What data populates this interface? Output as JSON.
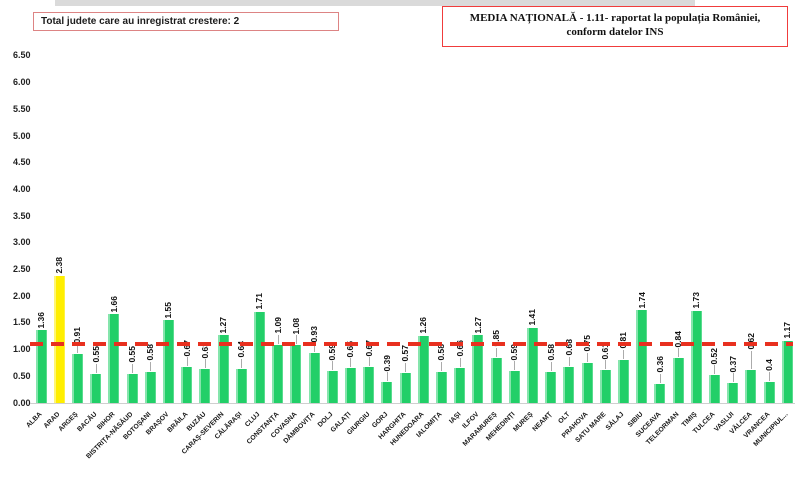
{
  "annotations": {
    "total_box": "Total judete care au inregistrat crestere: 2",
    "media_box_line1": "MEDIA NAȚIONALĂ - 1.11-  raportat la populația României,",
    "media_box_line2": "conform datelor INS"
  },
  "chart_data": {
    "type": "bar",
    "title": "",
    "xlabel": "",
    "ylabel": "",
    "legend": "none",
    "grid": false,
    "ylim": [
      0,
      6.5
    ],
    "ytick_step": 0.5,
    "yticks": [
      "6.50",
      "6.00",
      "5.50",
      "5.00",
      "4.50",
      "4.00",
      "3.50",
      "3.00",
      "2.50",
      "2.00",
      "1.50",
      "1.00",
      "0.50",
      "0.00"
    ],
    "categories": [
      "ALBA",
      "ARAD",
      "ARGEȘ",
      "BACĂU",
      "BIHOR",
      "BISTRIȚA-NĂSĂUD",
      "BOTOȘANI",
      "BRAȘOV",
      "BRĂILA",
      "BUZĂU",
      "CARAȘ-SEVERIN",
      "CĂLĂRAȘI",
      "CLUJ",
      "CONSTANȚA",
      "COVASNA",
      "DÂMBOVIȚA",
      "DOLJ",
      "GALAȚI",
      "GIURGIU",
      "GORJ",
      "HARGHITA",
      "HUNEDOARA",
      "IALOMIȚA",
      "IAȘI",
      "ILFOV",
      "MARAMUREȘ",
      "MEHEDINȚI",
      "MUREȘ",
      "NEAMȚ",
      "OLT",
      "PRAHOVA",
      "SATU MARE",
      "SĂLAJ",
      "SIBIU",
      "SUCEAVA",
      "TELEORMAN",
      "TIMIȘ",
      "TULCEA",
      "VASLUI",
      "VÂLCEA",
      "VRANCEA",
      "MUNICIPIUL..."
    ],
    "values": [
      1.36,
      2.38,
      0.91,
      0.55,
      1.66,
      0.55,
      0.58,
      1.55,
      0.67,
      0.63,
      1.27,
      0.64,
      1.71,
      1.09,
      1.08,
      0.93,
      0.59,
      0.65,
      0.67,
      0.39,
      0.57,
      1.26,
      0.58,
      0.66,
      1.27,
      0.85,
      0.59,
      1.41,
      0.58,
      0.68,
      0.75,
      0.61,
      0.81,
      1.74,
      0.36,
      0.84,
      1.73,
      0.52,
      0.37,
      0.62,
      0.4,
      1.17
    ],
    "value_labels": [
      "1.36",
      "2.38",
      "0.91",
      "0.55",
      "1.66",
      "0.55",
      "0.58",
      "1.55",
      "0.67",
      "0.63",
      "1.27",
      "0.64",
      "1.71",
      "1.09",
      "1.08",
      "0.93",
      "0.59",
      "0.65",
      "0.67",
      "0.39",
      "0.57",
      "1.26",
      "0.58",
      "0.66",
      "1.27",
      "0.85",
      "0.59",
      "1.41",
      "0.58",
      "0.68",
      "0.75",
      "0.61",
      "0.81",
      "1.74",
      "0.36",
      "0.84",
      "1.73",
      "0.52",
      "0.37",
      "0.62",
      "0.4",
      "1.17"
    ],
    "highlight_index": 1,
    "bar_color": "#22cf68",
    "highlight_color": "#ffee00",
    "reference_line": {
      "value": 1.11,
      "color": "#e8301f",
      "style": "dashed",
      "label": "MEDIA NAȚIONALĂ"
    }
  }
}
